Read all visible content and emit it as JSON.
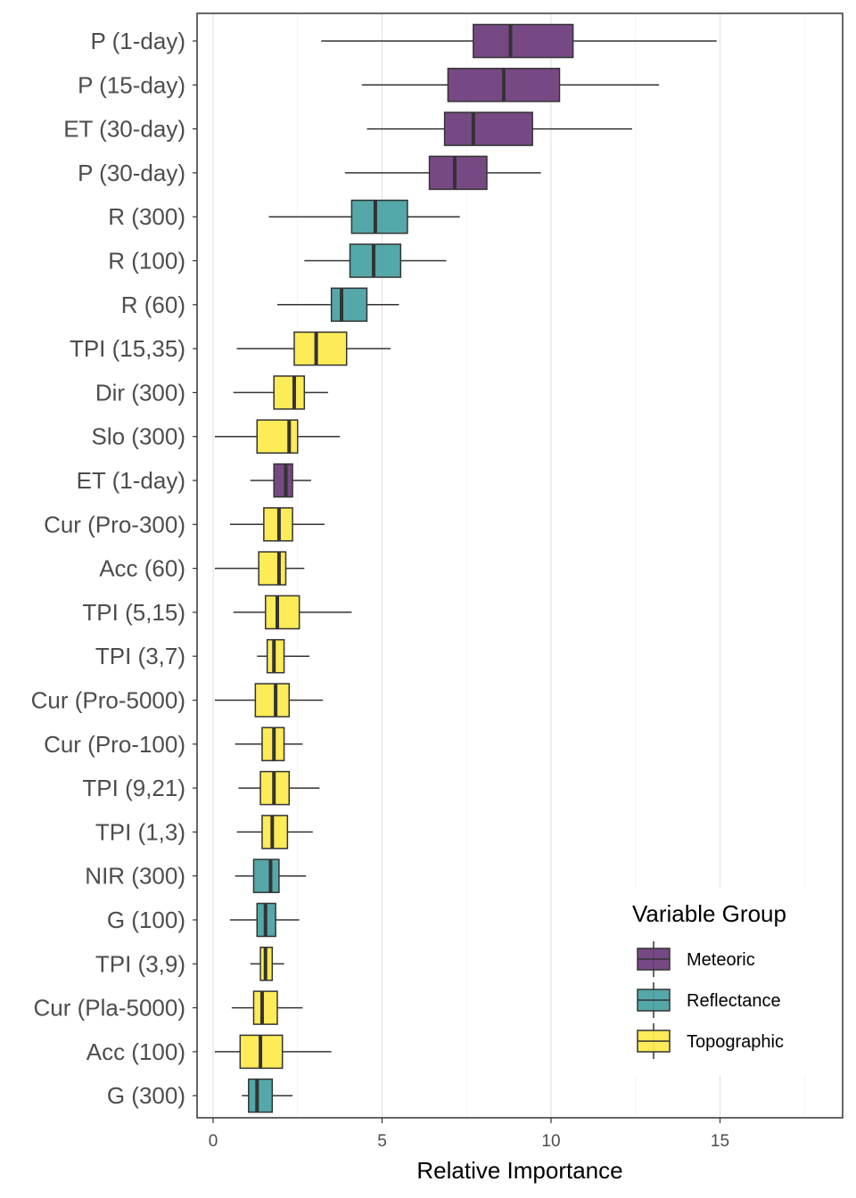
{
  "chart_data": {
    "type": "boxplot",
    "xlabel": "Relative Importance",
    "ylabel": "",
    "xlim": [
      -0.5,
      18.6
    ],
    "x_ticks": [
      0,
      5,
      10,
      15
    ],
    "x_tick_labels": [
      "0",
      "5",
      "10",
      "15"
    ],
    "grid": true,
    "legend": {
      "title": "Variable Group",
      "position": "bottom-right",
      "entries": [
        {
          "label": "Meteoric",
          "color": "#6b3a7a"
        },
        {
          "label": "Reflectance",
          "color": "#47a1a3"
        },
        {
          "label": "Topographic",
          "color": "#fde94a"
        }
      ]
    },
    "variables": [
      {
        "label": "P (1-day)",
        "group": "Meteoric",
        "whisker_low": 3.2,
        "q1": 7.7,
        "median": 8.8,
        "q3": 10.65,
        "whisker_high": 14.9
      },
      {
        "label": "P (15-day)",
        "group": "Meteoric",
        "whisker_low": 4.4,
        "q1": 6.95,
        "median": 8.6,
        "q3": 10.25,
        "whisker_high": 13.2
      },
      {
        "label": "ET (30-day)",
        "group": "Meteoric",
        "whisker_low": 4.55,
        "q1": 6.85,
        "median": 7.7,
        "q3": 9.45,
        "whisker_high": 12.4
      },
      {
        "label": "P (30-day)",
        "group": "Meteoric",
        "whisker_low": 3.9,
        "q1": 6.4,
        "median": 7.15,
        "q3": 8.1,
        "whisker_high": 9.7
      },
      {
        "label": "R (300)",
        "group": "Reflectance",
        "whisker_low": 1.65,
        "q1": 4.1,
        "median": 4.8,
        "q3": 5.75,
        "whisker_high": 7.3
      },
      {
        "label": "R (100)",
        "group": "Reflectance",
        "whisker_low": 2.7,
        "q1": 4.05,
        "median": 4.75,
        "q3": 5.55,
        "whisker_high": 6.9
      },
      {
        "label": "R (60)",
        "group": "Reflectance",
        "whisker_low": 1.9,
        "q1": 3.5,
        "median": 3.8,
        "q3": 4.55,
        "whisker_high": 5.5
      },
      {
        "label": "TPI (15,35)",
        "group": "Topographic",
        "whisker_low": 0.7,
        "q1": 2.4,
        "median": 3.05,
        "q3": 3.95,
        "whisker_high": 5.25
      },
      {
        "label": "Dir (300)",
        "group": "Topographic",
        "whisker_low": 0.6,
        "q1": 1.8,
        "median": 2.4,
        "q3": 2.7,
        "whisker_high": 3.4
      },
      {
        "label": "Slo (300)",
        "group": "Topographic",
        "whisker_low": 0.05,
        "q1": 1.3,
        "median": 2.25,
        "q3": 2.5,
        "whisker_high": 3.75
      },
      {
        "label": "ET (1-day)",
        "group": "Meteoric",
        "whisker_low": 1.1,
        "q1": 1.8,
        "median": 2.15,
        "q3": 2.35,
        "whisker_high": 2.9
      },
      {
        "label": "Cur (Pro-300)",
        "group": "Topographic",
        "whisker_low": 0.5,
        "q1": 1.5,
        "median": 1.95,
        "q3": 2.35,
        "whisker_high": 3.3
      },
      {
        "label": "Acc (60)",
        "group": "Topographic",
        "whisker_low": 0.05,
        "q1": 1.35,
        "median": 1.95,
        "q3": 2.15,
        "whisker_high": 2.7
      },
      {
        "label": "TPI (5,15)",
        "group": "Topographic",
        "whisker_low": 0.6,
        "q1": 1.55,
        "median": 1.9,
        "q3": 2.55,
        "whisker_high": 4.1
      },
      {
        "label": "TPI (3,7)",
        "group": "Topographic",
        "whisker_low": 1.3,
        "q1": 1.6,
        "median": 1.8,
        "q3": 2.1,
        "whisker_high": 2.85
      },
      {
        "label": "Cur (Pro-5000)",
        "group": "Topographic",
        "whisker_low": 0.05,
        "q1": 1.25,
        "median": 1.85,
        "q3": 2.25,
        "whisker_high": 3.25
      },
      {
        "label": "Cur (Pro-100)",
        "group": "Topographic",
        "whisker_low": 0.65,
        "q1": 1.45,
        "median": 1.8,
        "q3": 2.1,
        "whisker_high": 2.65
      },
      {
        "label": "TPI (9,21)",
        "group": "Topographic",
        "whisker_low": 0.75,
        "q1": 1.4,
        "median": 1.8,
        "q3": 2.25,
        "whisker_high": 3.15
      },
      {
        "label": "TPI (1,3)",
        "group": "Topographic",
        "whisker_low": 0.7,
        "q1": 1.45,
        "median": 1.75,
        "q3": 2.2,
        "whisker_high": 2.95
      },
      {
        "label": "NIR (300)",
        "group": "Reflectance",
        "whisker_low": 0.65,
        "q1": 1.2,
        "median": 1.7,
        "q3": 1.95,
        "whisker_high": 2.75
      },
      {
        "label": "G (100)",
        "group": "Reflectance",
        "whisker_low": 0.5,
        "q1": 1.3,
        "median": 1.55,
        "q3": 1.85,
        "whisker_high": 2.55
      },
      {
        "label": "TPI (3,9)",
        "group": "Topographic",
        "whisker_low": 1.1,
        "q1": 1.4,
        "median": 1.55,
        "q3": 1.75,
        "whisker_high": 2.1
      },
      {
        "label": "Cur (Pla-5000)",
        "group": "Topographic",
        "whisker_low": 0.55,
        "q1": 1.2,
        "median": 1.45,
        "q3": 1.9,
        "whisker_high": 2.65
      },
      {
        "label": "Acc (100)",
        "group": "Topographic",
        "whisker_low": 0.05,
        "q1": 0.8,
        "median": 1.4,
        "q3": 2.05,
        "whisker_high": 3.5
      },
      {
        "label": "G (300)",
        "group": "Reflectance",
        "whisker_low": 0.85,
        "q1": 1.05,
        "median": 1.3,
        "q3": 1.75,
        "whisker_high": 2.35
      }
    ]
  }
}
